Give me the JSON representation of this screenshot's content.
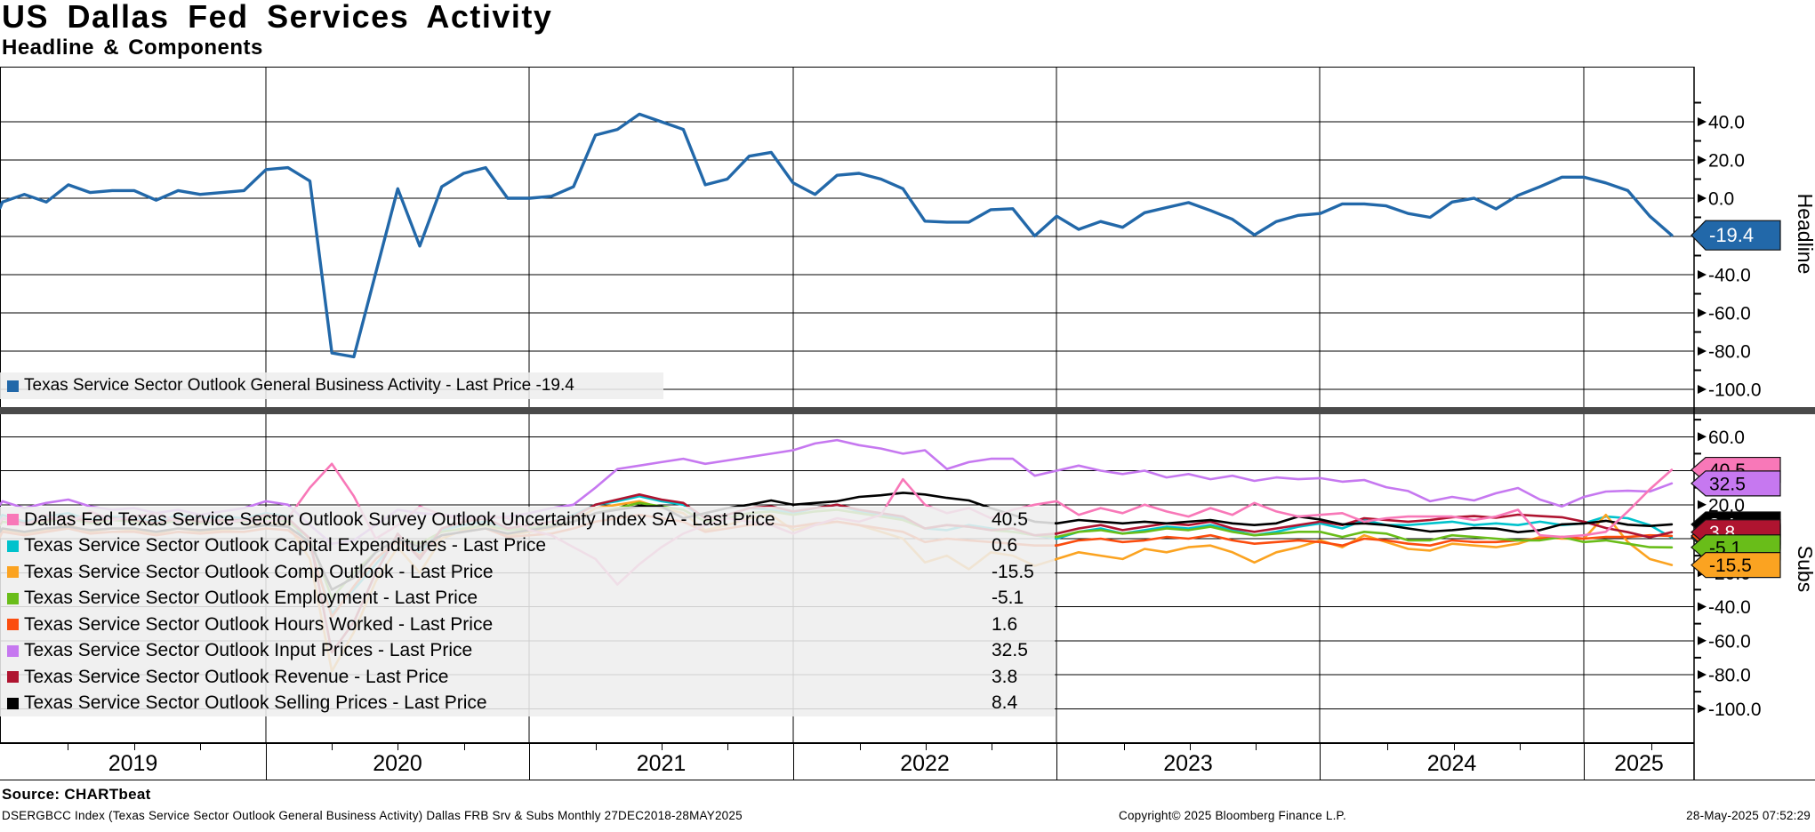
{
  "header": {
    "title": "US Dallas Fed Services Activity",
    "subtitle": "Headline & Components"
  },
  "colors": {
    "headline_blue": "#2268a9",
    "uncertainty_pink": "#f878b8",
    "capex_cyan": "#00c2cc",
    "comp_orange": "#fba321",
    "employment_green": "#69bd19",
    "hours_vermilion": "#fb4d0f",
    "input_violet": "#c678f0",
    "revenue_crimson": "#af1430",
    "selling_black": "#000000",
    "separator_gray": "#4a4a4a"
  },
  "legend_top": {
    "label": "Texas Service Sector Outlook General Business Activity - Last Price",
    "value": "-19.4"
  },
  "legend_subs": {
    "rows": [
      {
        "key": "uncertainty",
        "label": "Dallas Fed Texas Service Sector Outlook Survey Outlook Uncertainty Index SA - Last Price",
        "value": "40.5",
        "color": "#f878b8"
      },
      {
        "key": "capex",
        "label": "Texas Service Sector Outlook Capital Expenditures - Last Price",
        "value": "0.6",
        "color": "#00c2cc"
      },
      {
        "key": "comp",
        "label": "Texas Service Sector Outlook Comp Outlook - Last Price",
        "value": "-15.5",
        "color": "#fba321"
      },
      {
        "key": "employment",
        "label": "Texas Service Sector Outlook Employment - Last Price",
        "value": "-5.1",
        "color": "#69bd19"
      },
      {
        "key": "hours",
        "label": "Texas Service Sector Outlook Hours Worked - Last Price",
        "value": "1.6",
        "color": "#fb4d0f"
      },
      {
        "key": "input",
        "label": "Texas Service Sector Outlook Input Prices - Last Price",
        "value": "32.5",
        "color": "#c678f0"
      },
      {
        "key": "revenue",
        "label": "Texas Service Sector Outlook Revenue - Last Price",
        "value": "3.8",
        "color": "#af1430"
      },
      {
        "key": "selling",
        "label": "Texas Service Sector Outlook Selling Prices - Last Price",
        "value": "8.4",
        "color": "#000000"
      }
    ]
  },
  "panels": {
    "headline": {
      "axis_label": "Headline",
      "tick_labels": [
        "40.0",
        "20.0",
        "0.0",
        "-20.0",
        "-40.0",
        "-60.0",
        "-80.0",
        "-100.0"
      ],
      "tick_values": [
        40,
        20,
        0,
        -20,
        -40,
        -60,
        -80,
        -100
      ],
      "minor_ticks": [
        50,
        30,
        10,
        -10,
        -30,
        -50,
        -70,
        -90
      ],
      "badge": {
        "text": "-19.4",
        "value": -19.4,
        "bg": "#2268a9",
        "fg": "#ffffff"
      }
    },
    "subs": {
      "axis_label": "Subs",
      "tick_labels": [
        "60.0",
        "40.0",
        "20.0",
        "0.0",
        "-20.0",
        "-40.0",
        "-60.0",
        "-80.0",
        "-100.0"
      ],
      "tick_values": [
        60,
        40,
        20,
        0,
        -20,
        -40,
        -60,
        -80,
        -100
      ],
      "minor_ticks": [
        70,
        50,
        30,
        10,
        -10,
        -30,
        -50,
        -70,
        -90
      ],
      "badges": [
        {
          "text": "40.5",
          "value": 40.5,
          "bg": "#f878b8",
          "fg": "#000000"
        },
        {
          "text": "32.5",
          "value": 32.5,
          "bg": "#c678f0",
          "fg": "#000000"
        },
        {
          "text": "8.4",
          "value": 8.4,
          "bg": "#000000",
          "fg": "#ffffff"
        },
        {
          "text": "0.6",
          "value": 0.6,
          "bg": "#00c2cc",
          "fg": "#000000"
        },
        {
          "text": "1.6",
          "value": 1.6,
          "bg": "#fb4d0f",
          "fg": "#000000"
        },
        {
          "text": "3.8",
          "value": 3.8,
          "bg": "#af1430",
          "fg": "#ffffff"
        },
        {
          "text": "-5.1",
          "value": -5.1,
          "bg": "#69bd19",
          "fg": "#000000"
        },
        {
          "text": "-15.5",
          "value": -15.5,
          "bg": "#fba321",
          "fg": "#000000"
        }
      ]
    }
  },
  "xaxis": {
    "year_labels": [
      "2019",
      "2020",
      "2021",
      "2022",
      "2023",
      "2024",
      "2025"
    ],
    "range": "27DEC2018-28MAY2025"
  },
  "footer": {
    "source": "Source: CHARTbeat",
    "description": "DSERGBCC Index (Texas Service Sector Outlook General Business Activity) Dallas FRB Srv & Subs  Monthly 27DEC2018-28MAY2025",
    "copyright": "Copyright© 2025 Bloomberg Finance L.P.",
    "timestamp": "28-May-2025 07:52:29"
  },
  "chart_data": [
    {
      "type": "line",
      "panel": "Headline",
      "title": "Texas Service Sector Outlook General Business Activity",
      "x_start": "2018-12",
      "x_freq": "monthly",
      "x_end": "2025-05",
      "ylim": [
        -110,
        68
      ],
      "grid": true,
      "legend_position": "bottom-left",
      "series": [
        {
          "name": "Texas Service Sector Outlook General Business Activity",
          "last_price": -19.4,
          "color": "#2268a9",
          "values": [
            -5,
            -2,
            2,
            -2,
            7,
            3,
            4,
            4,
            -1,
            4,
            2,
            3,
            4,
            15,
            16,
            9,
            -81,
            -83,
            -39,
            5,
            -25,
            6,
            13,
            16,
            0,
            0,
            1,
            6,
            33,
            36,
            44,
            40,
            36,
            7,
            10,
            22,
            24,
            8,
            2,
            12,
            13,
            10,
            5,
            -12,
            -12.5,
            -12.5,
            -6,
            -5.5,
            -19.7,
            -9.4,
            -16.3,
            -12.2,
            -15.2,
            -7.6,
            -4.9,
            -2.3,
            -6.4,
            -11,
            -19.2,
            -12.2,
            -9,
            -8,
            -3,
            -3,
            -4,
            -8,
            -10,
            -2,
            0,
            -5.6,
            1.5,
            6,
            11,
            11,
            8,
            4,
            -9.4,
            -19.4
          ]
        }
      ]
    },
    {
      "type": "line",
      "panel": "Subs",
      "title": "Texas Service Sector Outlook Components",
      "x_start": "2018-12",
      "x_freq": "monthly",
      "x_end": "2025-05",
      "ylim": [
        -120,
        73
      ],
      "grid": true,
      "legend_position": "bottom-left",
      "series": [
        {
          "name": "Capital Expenditures",
          "last_price": 0.6,
          "color": "#00c2cc",
          "values": [
            12,
            14,
            10,
            13,
            15,
            11,
            13,
            12,
            10,
            14,
            12,
            13,
            12,
            15,
            13,
            -5,
            -44,
            -30,
            -15,
            0,
            -8,
            5,
            8,
            10,
            6,
            8,
            10,
            14,
            20,
            22,
            25,
            22,
            20,
            12,
            14,
            18,
            17,
            15,
            18,
            20,
            16,
            14,
            12,
            6,
            5,
            8,
            6,
            4,
            2,
            0,
            4,
            6,
            3,
            5,
            7,
            6,
            8,
            5,
            2,
            4,
            7,
            9,
            6,
            11,
            8,
            8,
            9,
            10,
            8,
            9,
            8,
            10,
            8,
            9,
            13,
            12,
            8,
            0.6
          ]
        },
        {
          "name": "Comp Outlook",
          "last_price": -15.5,
          "color": "#fba321",
          "values": [
            2,
            5,
            3,
            5,
            8,
            4,
            6,
            5,
            3,
            6,
            4,
            5,
            6,
            10,
            8,
            -12,
            -78,
            -55,
            -25,
            -5,
            -20,
            0,
            5,
            8,
            2,
            4,
            6,
            10,
            18,
            20,
            22,
            18,
            15,
            5,
            8,
            12,
            14,
            5,
            8,
            10,
            8,
            4,
            0,
            -14,
            -10,
            -18,
            -8,
            -10,
            -16,
            -12,
            -8,
            -10,
            -12,
            -6,
            -8,
            -5,
            -4,
            -8,
            -14,
            -8,
            -5,
            -1,
            -5,
            2,
            -2,
            -6,
            -7,
            -3,
            -4,
            -5,
            -3,
            1,
            0,
            0,
            14,
            -2,
            -12,
            -15.5
          ]
        },
        {
          "name": "Hours Worked",
          "last_price": 1.6,
          "color": "#fb4d0f",
          "values": [
            1,
            4,
            2,
            4,
            6,
            3,
            4,
            4,
            2,
            4,
            3,
            4,
            4,
            6,
            5,
            -4,
            -46,
            -28,
            -12,
            -1,
            -10,
            2,
            4,
            6,
            1,
            2,
            3,
            6,
            10,
            12,
            14,
            12,
            10,
            4,
            6,
            8,
            9,
            7,
            9,
            10,
            8,
            6,
            4,
            -2,
            0,
            -1,
            -2,
            -3,
            -4,
            -4,
            -1,
            0,
            -2,
            -1,
            1,
            0,
            2,
            -1,
            -3,
            -2,
            -1,
            -2,
            -4,
            0,
            -1,
            -3,
            -4,
            -1,
            -2,
            -2,
            -1,
            0,
            1,
            0,
            1,
            1,
            2,
            1.6
          ]
        },
        {
          "name": "Employment",
          "last_price": -5.1,
          "color": "#69bd19",
          "values": [
            8,
            10,
            8,
            10,
            12,
            9,
            11,
            10,
            8,
            11,
            9,
            10,
            10,
            12,
            10,
            0,
            -35,
            -20,
            -8,
            0,
            -3,
            4,
            6,
            8,
            5,
            6,
            8,
            10,
            15,
            18,
            21,
            19,
            17,
            10,
            12,
            15,
            16,
            14,
            16,
            17,
            15,
            13,
            11,
            6,
            8,
            7,
            5,
            4,
            2,
            1,
            4,
            5,
            3,
            4,
            6,
            5,
            7,
            4,
            2,
            3,
            4,
            4,
            1,
            4,
            3,
            -1,
            -1,
            2,
            1,
            0,
            -1,
            -1,
            1,
            -2,
            -1,
            -3,
            -5,
            -5.1
          ]
        },
        {
          "name": "Revenue",
          "last_price": 3.8,
          "color": "#af1430",
          "values": [
            9,
            12,
            9,
            11,
            13,
            10,
            12,
            11,
            9,
            12,
            10,
            11,
            11,
            14,
            12,
            0,
            -67,
            -49,
            -20,
            3,
            -12,
            6,
            10,
            12,
            6,
            8,
            10,
            13,
            20,
            23,
            26,
            23,
            21,
            12,
            14,
            18,
            19,
            16,
            18,
            20,
            17,
            15,
            13,
            6,
            8,
            7,
            5,
            6,
            2,
            3,
            6,
            8,
            5,
            7,
            9,
            8,
            10,
            6,
            4,
            6,
            8,
            10,
            8,
            12,
            11,
            10,
            11,
            12.6,
            13.3,
            12.3,
            14.1,
            13.3,
            12.6,
            10,
            6.3,
            3.8,
            0.8,
            3.8
          ]
        },
        {
          "name": "Selling Prices",
          "last_price": 8.4,
          "color": "#000000",
          "values": [
            4,
            6,
            4,
            6,
            7,
            5,
            6,
            6,
            4,
            6,
            5,
            6,
            6,
            8,
            7,
            -2,
            -30,
            -23,
            -8,
            0,
            -5,
            2,
            4,
            6,
            3,
            5,
            7,
            10,
            15,
            17,
            19,
            19,
            12,
            15,
            18,
            20,
            22.5,
            20,
            21,
            22,
            24.6,
            25.5,
            27,
            26,
            24,
            22.5,
            18,
            14,
            10,
            9,
            11,
            10,
            9,
            10,
            9,
            10,
            11,
            9,
            8,
            9,
            13,
            11.3,
            8.4,
            9,
            8,
            6,
            4.2,
            5,
            6.3,
            5.9,
            3.8,
            5,
            8.4,
            8.9,
            10.5,
            8.2,
            7.5,
            8.4
          ]
        },
        {
          "name": "Input Prices",
          "last_price": 32.5,
          "color": "#c678f0",
          "values": [
            20,
            22,
            18,
            21,
            23,
            19,
            17,
            18,
            15,
            17,
            14,
            16,
            18,
            22,
            20,
            8,
            -3,
            -1,
            8,
            17,
            15,
            14,
            13,
            12,
            13,
            15,
            18,
            20,
            30,
            41,
            43,
            45,
            47,
            44,
            46,
            48,
            50,
            52,
            56,
            58,
            55,
            53,
            50,
            52,
            41,
            45,
            47,
            47,
            37,
            40,
            43,
            40,
            38,
            40,
            36,
            38,
            35,
            37,
            34,
            36,
            35,
            35.6,
            33.5,
            34.5,
            30.3,
            28,
            22,
            24.6,
            22.5,
            26.7,
            29.8,
            23,
            19,
            24.6,
            27.7,
            28.2,
            27.7,
            32.5
          ]
        },
        {
          "name": "Survey Outlook Uncertainty Index SA",
          "last_price": 40.5,
          "color": "#f878b8",
          "values": [
            10,
            12,
            8,
            14,
            9,
            16,
            11,
            13,
            15,
            10,
            12,
            9,
            11,
            10,
            12,
            30,
            44,
            25,
            0,
            8,
            19,
            14,
            11,
            13,
            12,
            5,
            2,
            -5,
            -12,
            -27,
            -15,
            -5,
            3,
            8,
            12,
            10,
            8,
            3,
            8,
            12,
            10,
            14,
            35,
            20,
            15,
            18,
            12,
            17,
            20,
            22,
            14,
            18,
            15,
            20,
            16,
            13,
            18,
            14,
            21,
            16,
            13,
            14,
            15,
            10,
            12,
            13,
            13,
            13,
            11,
            13,
            17,
            2,
            1,
            2,
            4,
            16,
            29,
            40.5
          ]
        }
      ]
    }
  ]
}
